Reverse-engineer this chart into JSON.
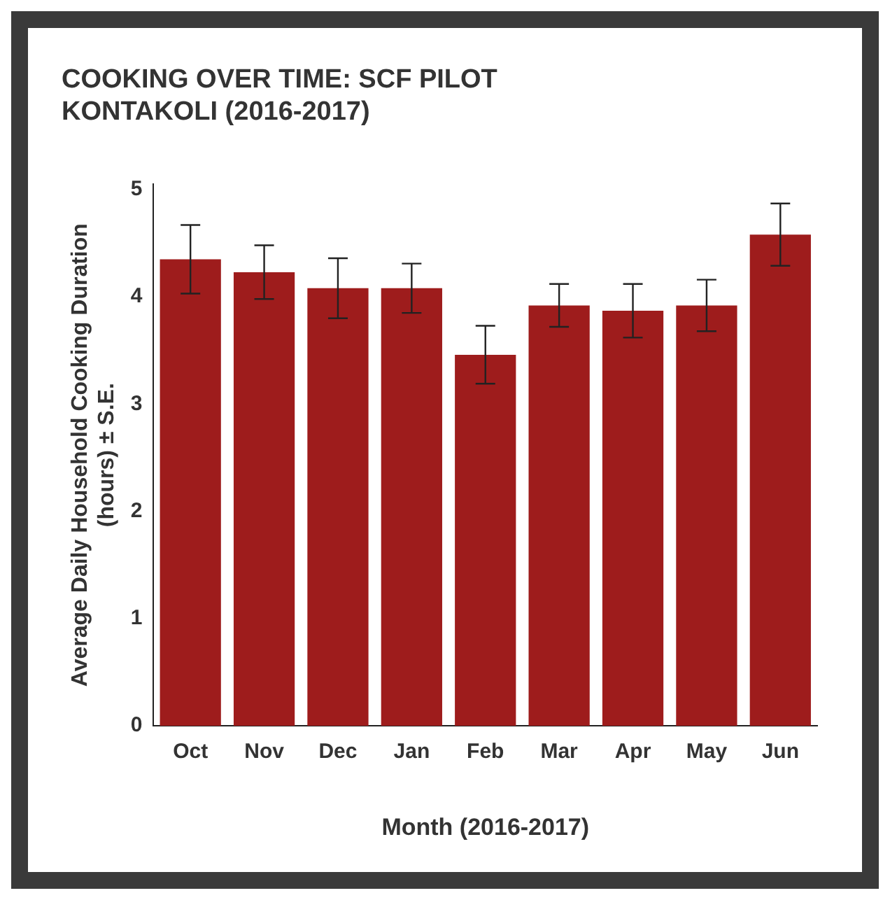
{
  "chart_data": {
    "type": "bar",
    "title": "COOKING OVER TIME: SCF PILOT\nKONTAKOLI (2016-2017)",
    "xlabel": "Month (2016-2017)",
    "ylabel": "Average Daily Household Cooking Duration\n(hours) ± S.E.",
    "categories": [
      "Oct",
      "Nov",
      "Dec",
      "Jan",
      "Feb",
      "Mar",
      "Apr",
      "May",
      "Jun"
    ],
    "values": [
      4.35,
      4.23,
      4.08,
      4.08,
      3.46,
      3.92,
      3.87,
      3.92,
      4.58
    ],
    "errors": [
      0.32,
      0.25,
      0.28,
      0.23,
      0.27,
      0.2,
      0.25,
      0.24,
      0.29
    ],
    "color": "#9e1c1c",
    "ylim": [
      0,
      5.05
    ],
    "yticks": [
      0,
      1,
      2,
      3,
      4,
      5
    ],
    "grid": false,
    "legend": false
  }
}
